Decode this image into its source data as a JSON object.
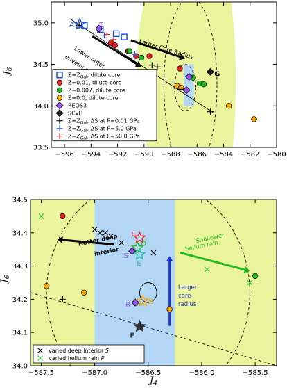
{
  "chart_data": [
    {
      "type": "scatter",
      "xlim": [
        -597,
        -580
      ],
      "ylim": [
        33.5,
        35.25
      ],
      "xticks": [
        -596,
        -594,
        -592,
        -590,
        -588,
        -586,
        -584,
        -582,
        -580
      ],
      "yticks": [
        33.5,
        34.0,
        34.5,
        35.0
      ],
      "xtick_labels": [
        "−596",
        "−594",
        "−592",
        "−590",
        "−588",
        "−586",
        "−584",
        "−582",
        "−580"
      ],
      "ytick_labels": [
        "33.5",
        "34.0",
        "34.5",
        "35.0"
      ],
      "ylabel": "J",
      "ylabel_sub": "6",
      "legend_position": "lower-left",
      "legend": [
        {
          "label": "Z=Z",
          "sub": "Gal",
          "suffix": ", dilute core",
          "marker": "square",
          "color": "#2255dd"
        },
        {
          "label": "Z=0.01, dilute core",
          "sub": "",
          "suffix": "",
          "marker": "circle",
          "color": "#ee2222"
        },
        {
          "label": "Z=0.007, dilute core",
          "sub": "",
          "suffix": "",
          "marker": "circle",
          "color": "#22bb22"
        },
        {
          "label": "Z=0.0, dilute core",
          "sub": "",
          "suffix": "",
          "marker": "circle",
          "color": "#ffaa00"
        },
        {
          "label": "REOS3",
          "sub": "",
          "suffix": "",
          "marker": "diamond",
          "color": "#9955ee"
        },
        {
          "label": "SCvH",
          "sub": "",
          "suffix": "",
          "marker": "diamond",
          "color": "#222222"
        },
        {
          "label": "Z=Z",
          "sub": "Gal",
          "suffix": ", ΔS at P=0.01 GPa",
          "marker": "plus",
          "color": "#000000"
        },
        {
          "label": "Z=Z",
          "sub": "Gal",
          "suffix": ", ΔS at P=5.0 GPa",
          "marker": "plus",
          "color": "#2255dd"
        },
        {
          "label": "Z=Z",
          "sub": "Gal",
          "suffix": ", ΔS at P=50.0 GPa",
          "marker": "plus",
          "color": "#ee2222"
        }
      ],
      "series": [
        {
          "name": "Z=ZGal, dilute core",
          "marker": "square",
          "color": "#2255dd",
          "points": [
            [
              -594.5,
              34.97
            ],
            [
              -593.3,
              34.92
            ],
            [
              -592.1,
              34.87
            ],
            [
              -591.5,
              34.83
            ]
          ]
        },
        {
          "name": "Z=0.01, dilute core",
          "marker": "circle",
          "color": "#ee2222",
          "points": [
            [
              -592.5,
              34.76
            ],
            [
              -592.2,
              34.73
            ],
            [
              -591.2,
              34.66
            ],
            [
              -590.6,
              34.6
            ],
            [
              -589.6,
              34.6
            ],
            [
              -587.3,
              34.45
            ]
          ]
        },
        {
          "name": "Z=0.007, dilute core",
          "marker": "circle",
          "color": "#22bb22",
          "points": [
            [
              -591.1,
              34.66
            ],
            [
              -590.2,
              34.58
            ],
            [
              -586.3,
              34.34
            ],
            [
              -585.8,
              34.27
            ],
            [
              -585.5,
              34.26
            ]
          ]
        },
        {
          "name": "Z=0.0, dilute core",
          "marker": "circle",
          "color": "#ffaa00",
          "points": [
            [
              -587.5,
              34.24
            ],
            [
              -587.2,
              34.22
            ],
            [
              -583.6,
              34.0
            ],
            [
              -581.7,
              33.84
            ]
          ]
        },
        {
          "name": "REOS3",
          "marker": "diamond",
          "color": "#9955ee",
          "points": [
            [
              -593.4,
              34.93
            ],
            [
              -586.6,
              34.35
            ],
            [
              -586.8,
              34.19
            ]
          ]
        },
        {
          "name": "SCvH",
          "marker": "diamond",
          "color": "#222222",
          "points": [
            [
              -585.0,
              34.41
            ]
          ]
        },
        {
          "name": "Z=ZGal, ΔS at P=0.01 GPa",
          "marker": "plus",
          "color": "#000000",
          "points": [
            [
              -594.9,
              34.97
            ],
            [
              -589.4,
              34.49
            ],
            [
              -589.0,
              34.47
            ],
            [
              -587.3,
              34.2
            ],
            [
              -585.0,
              33.93
            ]
          ]
        },
        {
          "name": "Z=ZGal, ΔS at P=5.0 GPa",
          "marker": "plus",
          "color": "#2255dd",
          "points": [
            [
              -593.0,
              34.85
            ],
            [
              -590.7,
              34.62
            ]
          ]
        },
        {
          "name": "Z=ZGal, ΔS at P=50.0 GPa",
          "marker": "plus",
          "color": "#ee2222",
          "points": [
            [
              -592.8,
              34.86
            ],
            [
              -592.3,
              34.8
            ]
          ]
        }
      ],
      "special_points": [
        {
          "label": "A",
          "x": -594.85,
          "y": 34.985,
          "color": "#2255dd",
          "marker": "star"
        },
        {
          "label": "T",
          "x": -593.4,
          "y": 34.95,
          "color": "#9955ee",
          "marker": "label"
        },
        {
          "label": "G",
          "x": -584.7,
          "y": 34.36,
          "color": "#000000",
          "marker": "label"
        }
      ],
      "annotations": [
        {
          "text": "Lower outer",
          "color": "#000000"
        },
        {
          "text": "envelope density",
          "color": "#000000"
        },
        {
          "text": "Larger Core Radius",
          "color": "#000000"
        }
      ],
      "fit_lines": [
        {
          "style": "solid",
          "color": "#000000",
          "from": [
            -595.5,
            35.04
          ],
          "to": [
            -584.8,
            33.92
          ]
        }
      ],
      "shaded_region": {
        "color": "#eaf49c",
        "x_range": [
          -590.5,
          -583.0
        ],
        "y_range": [
          33.5,
          35.25
        ]
      },
      "blue_box": {
        "color": "#b3d6f5",
        "x_range": [
          -587.0,
          -586.25
        ],
        "y_range": [
          34.0,
          34.5
        ]
      },
      "ellipses": [
        {
          "cx": -586.5,
          "cy": 34.25,
          "rx": 2.0,
          "ry": 1.05,
          "style": "dashed"
        },
        {
          "cx": -586.9,
          "cy": 34.22,
          "rx": 0.8,
          "ry": 0.28,
          "style": "dashed"
        }
      ]
    },
    {
      "type": "scatter",
      "xlim": [
        -587.6,
        -585.3
      ],
      "ylim": [
        34.0,
        34.5
      ],
      "xticks": [
        -587.5,
        -587.0,
        -586.5,
        -586.0,
        -585.5
      ],
      "yticks": [
        34.0,
        34.1,
        34.2,
        34.3,
        34.4,
        34.5
      ],
      "xtick_labels": [
        "−587.5",
        "−587.0",
        "−586.5",
        "−586.0",
        "−585.5"
      ],
      "ytick_labels": [
        "34.0",
        "34.1",
        "34.2",
        "34.3",
        "34.4",
        "34.5"
      ],
      "xlabel": "J",
      "xlabel_sub": "4",
      "ylabel": "J",
      "ylabel_sub": "6",
      "legend_position": "lower-left",
      "legend": [
        {
          "label": "varied deep interior ",
          "italic": "S",
          "marker": "x",
          "color": "#000000"
        },
        {
          "label": "varied helium rain ",
          "italic": "P",
          "marker": "x",
          "color": "#22bb22"
        }
      ],
      "series": [
        {
          "name": "varied deep interior S",
          "marker": "x",
          "color": "#000000",
          "points": [
            [
              -587.0,
              34.41
            ],
            [
              -586.95,
              34.4
            ],
            [
              -586.9,
              34.4
            ],
            [
              -586.85,
              34.39
            ],
            [
              -586.75,
              34.37
            ],
            [
              -586.45,
              34.34
            ]
          ]
        },
        {
          "name": "varied helium rain P",
          "marker": "x",
          "color": "#22bb22",
          "points": [
            [
              -587.5,
              34.45
            ],
            [
              -585.95,
              34.29
            ],
            [
              -585.55,
              34.25
            ]
          ]
        },
        {
          "name": "red circles",
          "marker": "circle",
          "color": "#ee2222",
          "points": [
            [
              -587.3,
              34.45
            ]
          ]
        },
        {
          "name": "green circles",
          "marker": "circle",
          "color": "#22bb22",
          "points": [
            [
              -585.5,
              34.27
            ]
          ]
        },
        {
          "name": "orange circles",
          "marker": "circle",
          "color": "#ffaa00",
          "points": [
            [
              -587.45,
              34.24
            ],
            [
              -587.1,
              34.22
            ],
            [
              -586.3,
              34.17
            ]
          ]
        },
        {
          "name": "black plus",
          "marker": "plus",
          "color": "#000000",
          "points": [
            [
              -587.3,
              34.2
            ]
          ]
        }
      ],
      "special_points": [
        {
          "label": "C",
          "x": -586.58,
          "y": 34.385,
          "color": "#ee2222",
          "marker": "star"
        },
        {
          "label": "D",
          "x": -586.6,
          "y": 34.355,
          "color": "#22bb22",
          "marker": "star"
        },
        {
          "label": "S",
          "x": -586.65,
          "y": 34.345,
          "color": "#9955ee",
          "marker": "diamond"
        },
        {
          "label": "E",
          "x": -586.58,
          "y": 34.335,
          "color": "#22bbaa",
          "marker": "star"
        },
        {
          "label": "B",
          "x": -586.55,
          "y": 34.195,
          "color": "#ffaa00",
          "marker": "star"
        },
        {
          "label": "R",
          "x": -586.62,
          "y": 34.19,
          "color": "#9955ee",
          "marker": "diamond"
        },
        {
          "label": "F",
          "x": -586.58,
          "y": 34.118,
          "color": "#333333",
          "marker": "star"
        }
      ],
      "annotations": [
        {
          "text": "Hotter deep",
          "color": "#000000"
        },
        {
          "text": "interior",
          "color": "#000000"
        },
        {
          "text": "Shallower",
          "color": "#22bb22"
        },
        {
          "text": "helium rain",
          "color": "#22bb22"
        },
        {
          "text": "Larger",
          "color": "#2233cc"
        },
        {
          "text": "core",
          "color": "#2233cc"
        },
        {
          "text": "radius",
          "color": "#2233cc"
        }
      ],
      "shaded_region": {
        "color": "#eaf49c"
      },
      "blue_box": {
        "color": "#b3d6f5",
        "x_range": [
          -587.0,
          -586.25
        ],
        "y_range": [
          34.0,
          34.5
        ]
      },
      "ellipses": [
        {
          "cx": -586.5,
          "cy": 34.22,
          "rx": 0.95,
          "ry": 0.34,
          "style": "dashed"
        },
        {
          "cx": -586.5,
          "cy": 34.22,
          "rx": 0.08,
          "ry": 0.03,
          "style": "solid"
        }
      ]
    }
  ]
}
